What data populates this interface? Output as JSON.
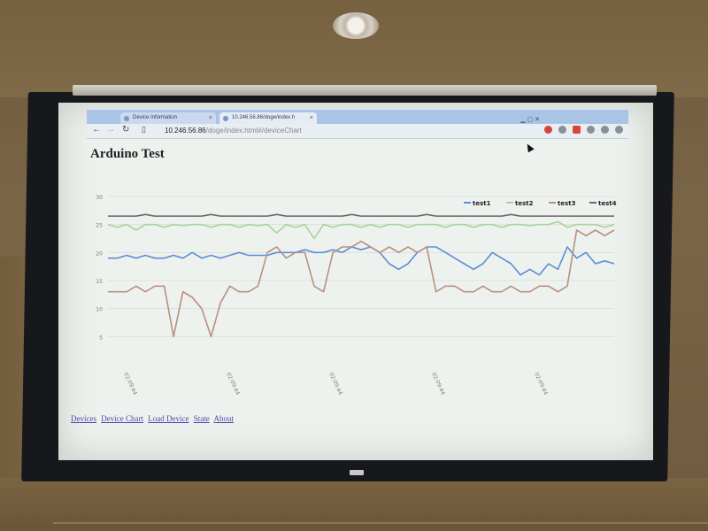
{
  "browser": {
    "tabs": [
      {
        "label": "Device Information"
      },
      {
        "label": "10.246.56.86/doge/index.h"
      }
    ],
    "address_host": "10.246.56.86",
    "address_path": "/doge/index.html#/deviceChart"
  },
  "page": {
    "title": "Arduino Test",
    "nav_links": [
      "Devices",
      "Device Chart",
      "Load Device",
      "State",
      "About"
    ]
  },
  "chart_data": {
    "type": "line",
    "ylim": [
      0,
      30
    ],
    "y_ticks": [
      "30",
      "25",
      "20",
      "15",
      "10",
      "5"
    ],
    "x_ticks": [
      "02:09:44",
      "02:09:44",
      "02:09:44",
      "02:09:44",
      "02:09:44"
    ],
    "legend_placement": "top-right",
    "series": [
      {
        "name": "test1",
        "color": "#5b8fd6",
        "values": [
          19,
          19,
          19.5,
          19,
          19.5,
          19,
          19,
          19.5,
          19,
          20,
          19,
          19.5,
          19,
          19.5,
          20,
          19.5,
          19.5,
          19.5,
          20,
          20,
          20,
          20.5,
          20,
          20,
          20.5,
          20,
          21,
          20.5,
          21,
          20,
          18,
          17,
          18,
          20,
          21,
          21,
          20,
          19,
          18,
          17,
          18,
          20,
          19,
          18,
          16,
          17,
          16,
          18,
          17,
          21,
          19,
          20,
          18,
          18.5,
          18
        ]
      },
      {
        "name": "test2",
        "color": "#a7d39a",
        "values": [
          25,
          24.5,
          25,
          24,
          25,
          25,
          24.5,
          25,
          24.8,
          25,
          25,
          24.5,
          25,
          25,
          24.5,
          25,
          24.8,
          25,
          23.5,
          25,
          24.5,
          25,
          22.5,
          25,
          24.5,
          25,
          25,
          24.5,
          25,
          24.5,
          25,
          25,
          24.5,
          25,
          25,
          25,
          24.5,
          25,
          25,
          24.5,
          25,
          25,
          24.5,
          25,
          25,
          24.8,
          25,
          25,
          25.5,
          24.5,
          25,
          25,
          25,
          24.5,
          25
        ]
      },
      {
        "name": "test3",
        "color": "#b89080",
        "values": [
          13,
          13,
          13,
          14,
          13,
          14,
          14,
          5,
          13,
          12,
          10,
          5,
          11,
          14,
          13,
          13,
          14,
          20,
          21,
          19,
          20,
          20,
          14,
          13,
          20,
          21,
          21,
          22,
          21,
          20,
          21,
          20,
          21,
          20,
          21,
          13,
          14,
          14,
          13,
          13,
          14,
          13,
          13,
          14,
          13,
          13,
          14,
          14,
          13,
          14,
          24,
          23,
          24,
          23,
          24
        ]
      },
      {
        "name": "test4",
        "color": "#6d6d6d",
        "values": [
          26.5,
          26.5,
          26.5,
          26.5,
          26.8,
          26.5,
          26.5,
          26.5,
          26.5,
          26.5,
          26.5,
          26.8,
          26.5,
          26.5,
          26.5,
          26.5,
          26.5,
          26.5,
          26.8,
          26.5,
          26.5,
          26.5,
          26.5,
          26.5,
          26.5,
          26.5,
          26.8,
          26.5,
          26.5,
          26.5,
          26.5,
          26.5,
          26.5,
          26.5,
          26.8,
          26.5,
          26.5,
          26.5,
          26.5,
          26.5,
          26.5,
          26.5,
          26.5,
          26.8,
          26.5,
          26.5,
          26.5,
          26.5,
          26.5,
          26.5,
          26.5,
          26.5,
          26.5,
          26.5,
          26.5
        ]
      }
    ]
  }
}
